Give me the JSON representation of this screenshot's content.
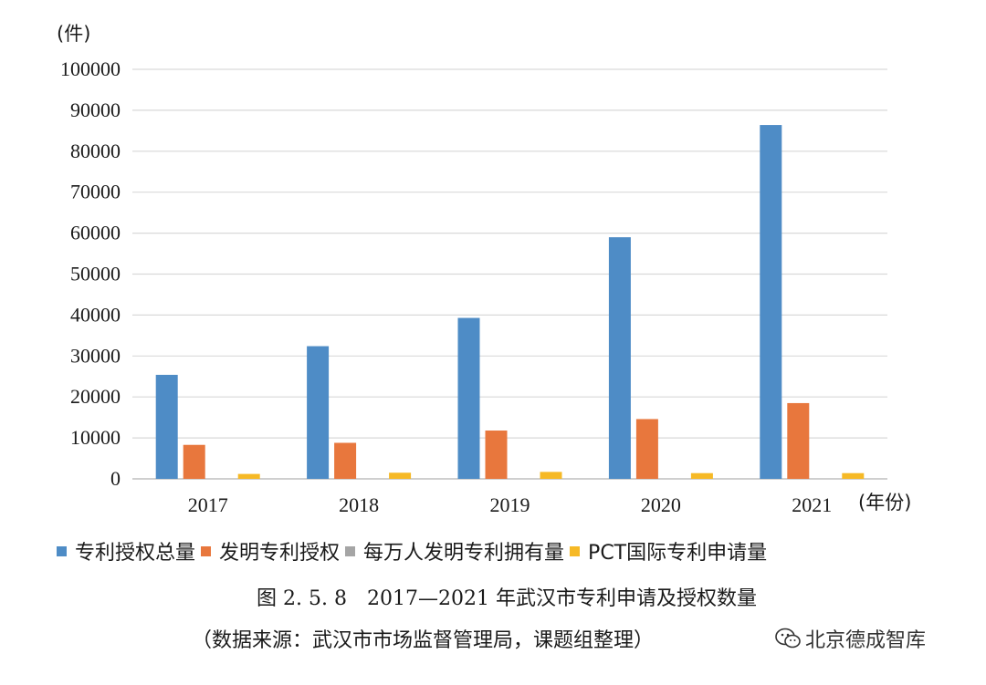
{
  "chart_data": {
    "type": "bar",
    "categories": [
      "2017",
      "2018",
      "2019",
      "2020",
      "2021"
    ],
    "series": [
      {
        "name": "专利授权总量",
        "color": "#4E8CC6",
        "values": [
          25400,
          32400,
          39300,
          59000,
          86400
        ]
      },
      {
        "name": "发明专利授权",
        "color": "#E8773D",
        "values": [
          8300,
          8800,
          11800,
          14600,
          18500
        ]
      },
      {
        "name": "每万人发明专利拥有量",
        "color": "#A5A5A5",
        "values": [
          0,
          0,
          0,
          0,
          0
        ]
      },
      {
        "name": "PCT国际专利申请量",
        "color": "#F6B926",
        "values": [
          1200,
          1500,
          1700,
          1400,
          1400
        ]
      }
    ],
    "ylim": [
      0,
      100000
    ],
    "yticks": [
      "0",
      "10000",
      "20000",
      "30000",
      "40000",
      "50000",
      "60000",
      "70000",
      "80000",
      "90000",
      "100000"
    ],
    "ylabel": "(件)",
    "xlabel": "(年份)",
    "grid": true,
    "legend_position": "bottom"
  },
  "caption": "图 2. 5. 8　2017—2021 年武汉市专利申请及授权数量",
  "source": "（数据来源：武汉市市场监督管理局，课题组整理）",
  "watermark": "北京德成智库"
}
